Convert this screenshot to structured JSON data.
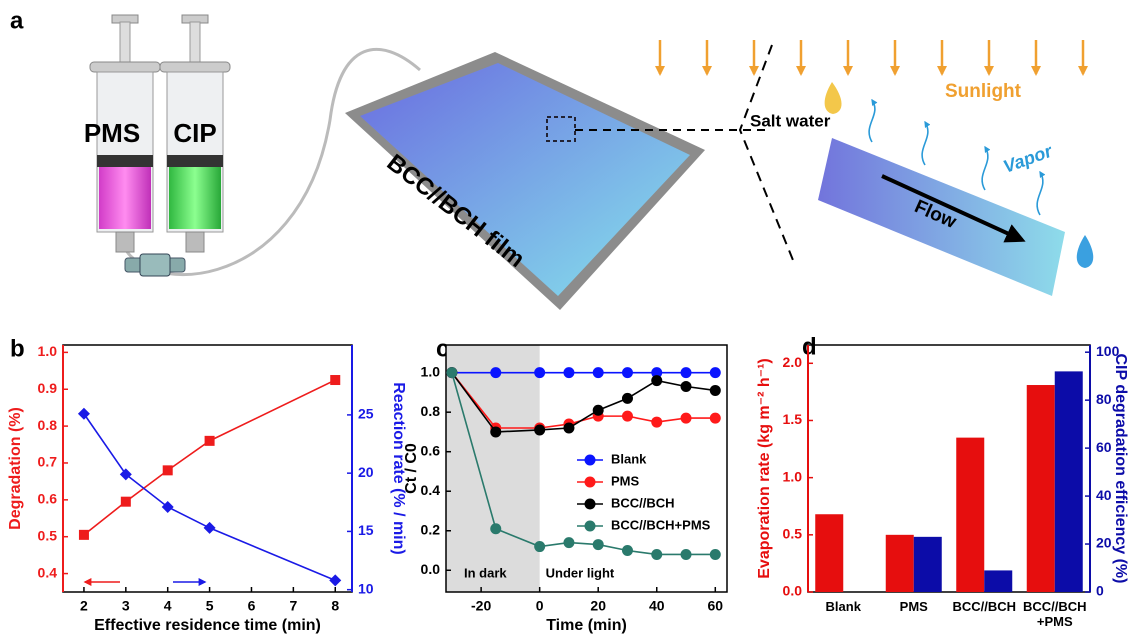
{
  "panel_labels": [
    "a",
    "b",
    "c",
    "d"
  ],
  "illustration": {
    "syringe_labels": [
      "PMS",
      "CIP"
    ],
    "film_label": "BCC//BCH film",
    "salt_water": "Salt water",
    "sunlight": "Sunlight",
    "vapor": "Vapor",
    "flow": "Flow"
  },
  "chart_data": [
    {
      "type": "line",
      "x_label": "Effective residence time (min)",
      "y_label": "Degradation (%)",
      "y2_label": "Reaction rate (% / min)",
      "x": [
        2,
        3,
        4,
        5,
        8
      ],
      "series": [
        {
          "color": "#ee1c1c",
          "marker": "square",
          "values": [
            0.505,
            0.595,
            0.68,
            0.76,
            0.925
          ]
        },
        {
          "color": "#1a1ae6",
          "marker": "diamond",
          "axis": "y2",
          "values": [
            25.1,
            19.9,
            17.1,
            15.3,
            10.8
          ]
        }
      ],
      "xlim": [
        1.5,
        8.4
      ],
      "xticks": [
        2,
        3,
        4,
        5,
        6,
        7,
        8
      ],
      "ylim": [
        0.35,
        1.02
      ],
      "yticks": [
        0.4,
        0.5,
        0.6,
        0.7,
        0.8,
        0.9,
        {
          "value": 1,
          "label": "1.0"
        }
      ],
      "y2lim": [
        9.8,
        31
      ],
      "y2ticks": [
        10,
        15,
        20,
        25
      ]
    },
    {
      "type": "line",
      "x_label": "Time (min)",
      "y_label": "Ct / C0",
      "annotations": [
        "In dark",
        "Under light"
      ],
      "shade_x": 0,
      "x": [
        -30,
        -15,
        0,
        10,
        20,
        30,
        40,
        50,
        60
      ],
      "series": [
        {
          "name": "Blank",
          "color": "#0a14ff",
          "marker": "circle",
          "values": [
            1.0,
            1.0,
            1.0,
            1.0,
            1.0,
            1.0,
            1.0,
            1.0,
            1.0
          ]
        },
        {
          "name": "PMS",
          "color": "#ff1a1a",
          "marker": "circle",
          "values": [
            1.0,
            0.72,
            0.72,
            0.74,
            0.78,
            0.78,
            0.75,
            0.77,
            0.77
          ]
        },
        {
          "name": "BCC//BCH",
          "color": "#000000",
          "marker": "circle",
          "values": [
            1.0,
            0.7,
            0.71,
            0.72,
            0.81,
            0.87,
            0.96,
            0.93,
            0.91
          ]
        },
        {
          "name": "BCC//BCH+PMS",
          "color": "#2a7a6c",
          "marker": "circle",
          "values": [
            1.0,
            0.21,
            0.12,
            0.14,
            0.13,
            0.1,
            0.08,
            0.08,
            0.08
          ]
        }
      ],
      "xlim": [
        -32,
        64
      ],
      "xticks": [
        -20,
        0,
        20,
        40,
        60
      ],
      "ylim": [
        -0.11,
        1.14
      ],
      "yticks": [
        {
          "value": 0,
          "label": "0.0"
        },
        0.2,
        0.4,
        0.6,
        0.8,
        {
          "value": 1,
          "label": "1.0"
        }
      ]
    },
    {
      "type": "bar",
      "y_label": "Evaporation rate (kg m⁻² h⁻¹)",
      "y2_label": "CIP degradation efficiency (%)",
      "categories": [
        "Blank",
        "PMS",
        "BCC//BCH",
        "BCC//BCH +PMS"
      ],
      "series": [
        {
          "color": "#e60e0e",
          "values": [
            0.68,
            0.5,
            1.35,
            1.81
          ]
        },
        {
          "color": "#0c0ca8",
          "axis": "y2",
          "values": [
            0,
            23,
            9,
            92
          ]
        }
      ],
      "ylim": [
        0,
        2.16
      ],
      "yticks": [
        {
          "value": 0,
          "label": "0.0"
        },
        0.5,
        {
          "value": 1,
          "label": "1.0"
        },
        1.5,
        {
          "value": 2,
          "label": "2.0"
        }
      ],
      "y2lim": [
        0,
        103
      ],
      "y2ticks": [
        0,
        20,
        40,
        60,
        80,
        100
      ]
    }
  ]
}
